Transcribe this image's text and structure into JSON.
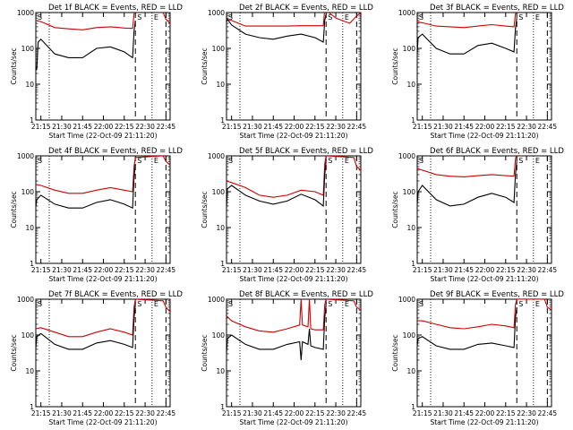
{
  "chart_data": [
    {
      "type": "line",
      "title": "Det 1f BLACK = Events, RED = LLD",
      "ylabel": "Counts/sec",
      "xlabel": "Start Time (22-Oct-09 21:11:20)",
      "yscale": "log",
      "ylim": [
        1,
        1000
      ],
      "yticks": [
        "1",
        "10",
        "100",
        "1000"
      ],
      "xticks": [
        "21:15",
        "21:30",
        "21:45",
        "22:00",
        "22:15",
        "22:30",
        "22:45"
      ],
      "markers": [
        "S",
        "E"
      ],
      "series": [
        {
          "color": "#d00000",
          "x": [
            "21:11",
            "21:15",
            "21:25",
            "21:35",
            "21:45",
            "21:55",
            "22:05",
            "22:15",
            "22:21",
            "22:22",
            "22:23",
            "22:43",
            "22:45",
            "22:48"
          ],
          "values": [
            600,
            560,
            380,
            350,
            330,
            380,
            400,
            370,
            360,
            900,
            1200,
            1000,
            650,
            500
          ]
        },
        {
          "color": "#000000",
          "x": [
            "21:11",
            "21:12",
            "21:13",
            "21:15",
            "21:25",
            "21:35",
            "21:45",
            "21:55",
            "22:05",
            "22:15",
            "22:21",
            "22:22",
            "22:23"
          ],
          "values": [
            30,
            25,
            150,
            180,
            70,
            55,
            55,
            100,
            110,
            80,
            55,
            300,
            600
          ]
        }
      ]
    },
    {
      "type": "line",
      "title": "Det 2f BLACK = Events, RED = LLD",
      "ylabel": "Counts/sec",
      "xlabel": "Start Time (22-Oct-09 21:11:20)",
      "yscale": "log",
      "ylim": [
        1,
        1000
      ],
      "yticks": [
        "1",
        "10",
        "100",
        "1000"
      ],
      "xticks": [
        "21:15",
        "21:30",
        "21:45",
        "22:00",
        "22:15",
        "22:30",
        "22:45"
      ],
      "markers": [
        "S",
        "E"
      ],
      "series": [
        {
          "color": "#d00000",
          "x": [
            "21:11",
            "21:15",
            "21:25",
            "21:35",
            "21:45",
            "21:55",
            "22:05",
            "22:15",
            "22:21",
            "22:22",
            "22:25",
            "22:30",
            "22:40",
            "22:45",
            "22:48"
          ],
          "values": [
            650,
            600,
            420,
            420,
            420,
            420,
            430,
            430,
            430,
            1200,
            1000,
            700,
            500,
            800,
            1000
          ]
        },
        {
          "color": "#000000",
          "x": [
            "21:11",
            "21:12",
            "21:15",
            "21:25",
            "21:35",
            "21:45",
            "21:55",
            "22:05",
            "22:15",
            "22:21",
            "22:22",
            "22:23"
          ],
          "values": [
            500,
            650,
            450,
            250,
            200,
            180,
            220,
            250,
            200,
            150,
            600,
            900
          ]
        }
      ]
    },
    {
      "type": "line",
      "title": "Det 3f BLACK = Events, RED = LLD",
      "ylabel": "Counts/sec",
      "xlabel": "Start Time (22-Oct-09 21:11:20)",
      "yscale": "log",
      "ylim": [
        1,
        1000
      ],
      "yticks": [
        "1",
        "10",
        "100",
        "1000"
      ],
      "xticks": [
        "21:15",
        "21:30",
        "21:45",
        "22:00",
        "22:15",
        "22:30",
        "22:45"
      ],
      "markers": [
        "S",
        "E"
      ],
      "series": [
        {
          "color": "#d00000",
          "x": [
            "21:11",
            "21:15",
            "21:25",
            "21:35",
            "21:45",
            "21:55",
            "22:05",
            "22:15",
            "22:21",
            "22:22",
            "22:23"
          ],
          "values": [
            550,
            520,
            420,
            400,
            380,
            420,
            460,
            420,
            400,
            900,
            1200
          ]
        },
        {
          "color": "#000000",
          "x": [
            "21:11",
            "21:12",
            "21:15",
            "21:25",
            "21:35",
            "21:45",
            "21:55",
            "22:05",
            "22:15",
            "22:21",
            "22:22",
            "22:23"
          ],
          "values": [
            40,
            200,
            250,
            100,
            70,
            70,
            120,
            140,
            100,
            80,
            350,
            700
          ]
        }
      ]
    },
    {
      "type": "line",
      "title": "Det 4f BLACK = Events, RED = LLD",
      "ylabel": "Counts/sec",
      "xlabel": "Start Time (22-Oct-09 21:11:20)",
      "yscale": "log",
      "ylim": [
        1,
        1000
      ],
      "yticks": [
        "1",
        "10",
        "100",
        "1000"
      ],
      "xticks": [
        "21:15",
        "21:30",
        "21:45",
        "22:00",
        "22:15",
        "22:30",
        "22:45"
      ],
      "markers": [
        "S",
        "E"
      ],
      "series": [
        {
          "color": "#d00000",
          "x": [
            "21:11",
            "21:15",
            "21:25",
            "21:35",
            "21:45",
            "21:55",
            "22:05",
            "22:15",
            "22:21",
            "22:22",
            "22:23",
            "22:43",
            "22:45",
            "22:48"
          ],
          "values": [
            160,
            150,
            110,
            90,
            90,
            110,
            130,
            110,
            100,
            500,
            900,
            1000,
            700,
            550
          ]
        },
        {
          "color": "#000000",
          "x": [
            "21:11",
            "21:12",
            "21:15",
            "21:25",
            "21:35",
            "21:45",
            "21:55",
            "22:05",
            "22:15",
            "22:21",
            "22:22",
            "22:23"
          ],
          "values": [
            30,
            60,
            80,
            45,
            35,
            35,
            50,
            60,
            45,
            35,
            250,
            600
          ]
        }
      ]
    },
    {
      "type": "line",
      "title": "Det 5f BLACK = Events, RED = LLD",
      "ylabel": "Counts/sec",
      "xlabel": "Start Time (22-Oct-09 21:11:20)",
      "yscale": "log",
      "ylim": [
        1,
        1000
      ],
      "yticks": [
        "1",
        "10",
        "100",
        "1000"
      ],
      "xticks": [
        "21:15",
        "21:30",
        "21:45",
        "22:00",
        "22:15",
        "22:30",
        "22:45"
      ],
      "markers": [
        "S",
        "E"
      ],
      "series": [
        {
          "color": "#d00000",
          "x": [
            "21:11",
            "21:15",
            "21:25",
            "21:35",
            "21:45",
            "21:55",
            "22:05",
            "22:15",
            "22:21",
            "22:22",
            "22:23",
            "22:43",
            "22:45",
            "22:48"
          ],
          "values": [
            200,
            180,
            130,
            80,
            70,
            80,
            110,
            100,
            80,
            600,
            1000,
            900,
            500,
            400
          ]
        },
        {
          "color": "#000000",
          "x": [
            "21:11",
            "21:12",
            "21:15",
            "21:25",
            "21:35",
            "21:45",
            "21:55",
            "22:05",
            "22:15",
            "22:21",
            "22:22",
            "22:23"
          ],
          "values": [
            20,
            120,
            150,
            80,
            55,
            45,
            55,
            85,
            60,
            40,
            300,
            700
          ]
        }
      ]
    },
    {
      "type": "line",
      "title": "Det 6f BLACK = Events, RED = LLD",
      "ylabel": "Counts/sec",
      "xlabel": "Start Time (22-Oct-09 21:11:20)",
      "yscale": "log",
      "ylim": [
        1,
        1000
      ],
      "yticks": [
        "1",
        "10",
        "100",
        "1000"
      ],
      "xticks": [
        "21:15",
        "21:30",
        "21:45",
        "22:00",
        "22:15",
        "22:30",
        "22:45"
      ],
      "markers": [
        "S",
        "E"
      ],
      "series": [
        {
          "color": "#d00000",
          "x": [
            "21:11",
            "21:15",
            "21:25",
            "21:35",
            "21:45",
            "21:55",
            "22:05",
            "22:15",
            "22:21",
            "22:22",
            "22:23"
          ],
          "values": [
            450,
            400,
            300,
            270,
            260,
            280,
            300,
            280,
            270,
            800,
            1200
          ]
        },
        {
          "color": "#000000",
          "x": [
            "21:11",
            "21:12",
            "21:15",
            "21:25",
            "21:35",
            "21:45",
            "21:55",
            "22:05",
            "22:15",
            "22:21",
            "22:22",
            "22:23"
          ],
          "values": [
            30,
            100,
            150,
            60,
            40,
            45,
            70,
            90,
            70,
            50,
            300,
            700
          ]
        }
      ]
    },
    {
      "type": "line",
      "title": "Det 7f BLACK = Events, RED = LLD",
      "ylabel": "Counts/sec",
      "xlabel": "Start Time (22-Oct-09 21:11:20)",
      "yscale": "log",
      "ylim": [
        1,
        1000
      ],
      "yticks": [
        "1",
        "10",
        "100",
        "1000"
      ],
      "xticks": [
        "21:15",
        "21:30",
        "21:45",
        "22:00",
        "22:15",
        "22:30",
        "22:45"
      ],
      "markers": [
        "S",
        "E"
      ],
      "series": [
        {
          "color": "#d00000",
          "x": [
            "21:11",
            "21:15",
            "21:25",
            "21:35",
            "21:45",
            "21:55",
            "22:05",
            "22:15",
            "22:21",
            "22:22",
            "22:23",
            "22:43",
            "22:45",
            "22:48"
          ],
          "values": [
            150,
            160,
            120,
            90,
            90,
            120,
            150,
            120,
            100,
            600,
            1000,
            900,
            600,
            450
          ]
        },
        {
          "color": "#000000",
          "x": [
            "21:11",
            "21:12",
            "21:15",
            "21:25",
            "21:35",
            "21:45",
            "21:55",
            "22:05",
            "22:15",
            "22:21",
            "22:22",
            "22:23"
          ],
          "values": [
            30,
            90,
            110,
            55,
            40,
            40,
            60,
            70,
            55,
            45,
            300,
            700
          ]
        }
      ]
    },
    {
      "type": "line",
      "title": "Det 8f BLACK = Events, RED = LLD",
      "ylabel": "Counts/sec",
      "xlabel": "Start Time (22-Oct-09 21:11:20)",
      "yscale": "log",
      "ylim": [
        1,
        1000
      ],
      "yticks": [
        "1",
        "10",
        "100",
        "1000"
      ],
      "xticks": [
        "21:15",
        "21:30",
        "21:45",
        "22:00",
        "22:15",
        "22:30",
        "22:45"
      ],
      "markers": [
        "S",
        "E"
      ],
      "series": [
        {
          "color": "#d00000",
          "x": [
            "21:11",
            "21:15",
            "21:25",
            "21:35",
            "21:45",
            "21:55",
            "22:04",
            "22:05",
            "22:06",
            "22:10",
            "22:11",
            "22:12",
            "22:15",
            "22:21",
            "22:22",
            "22:23",
            "22:43",
            "22:45",
            "22:48"
          ],
          "values": [
            350,
            250,
            170,
            130,
            120,
            150,
            190,
            1000,
            190,
            170,
            1000,
            150,
            140,
            140,
            700,
            1000,
            900,
            600,
            500
          ]
        },
        {
          "color": "#000000",
          "x": [
            "21:11",
            "21:12",
            "21:15",
            "21:25",
            "21:35",
            "21:45",
            "21:55",
            "22:04",
            "22:05",
            "22:06",
            "22:10",
            "22:11",
            "22:12",
            "22:15",
            "22:21",
            "22:22",
            "22:23"
          ],
          "values": [
            20,
            80,
            100,
            55,
            40,
            40,
            55,
            65,
            20,
            65,
            55,
            150,
            50,
            45,
            40,
            300,
            700
          ]
        }
      ]
    },
    {
      "type": "line",
      "title": "Det 9f BLACK = Events, RED = LLD",
      "ylabel": "Counts/sec",
      "xlabel": "Start Time (22-Oct-09 21:11:20)",
      "yscale": "log",
      "ylim": [
        1,
        1000
      ],
      "yticks": [
        "1",
        "10",
        "100",
        "1000"
      ],
      "xticks": [
        "21:15",
        "21:30",
        "21:45",
        "22:00",
        "22:15",
        "22:30",
        "22:45"
      ],
      "markers": [
        "S",
        "E"
      ],
      "series": [
        {
          "color": "#d00000",
          "x": [
            "21:11",
            "21:15",
            "21:25",
            "21:35",
            "21:45",
            "21:55",
            "22:05",
            "22:15",
            "22:21",
            "22:22",
            "22:23",
            "22:43",
            "22:45",
            "22:48"
          ],
          "values": [
            250,
            250,
            200,
            160,
            150,
            170,
            200,
            180,
            160,
            700,
            1000,
            1000,
            600,
            500
          ]
        },
        {
          "color": "#000000",
          "x": [
            "21:11",
            "21:12",
            "21:15",
            "21:25",
            "21:35",
            "21:45",
            "21:55",
            "22:05",
            "22:15",
            "22:21",
            "22:22",
            "22:23"
          ],
          "values": [
            40,
            80,
            90,
            50,
            40,
            40,
            55,
            60,
            50,
            45,
            300,
            600
          ]
        }
      ]
    }
  ]
}
